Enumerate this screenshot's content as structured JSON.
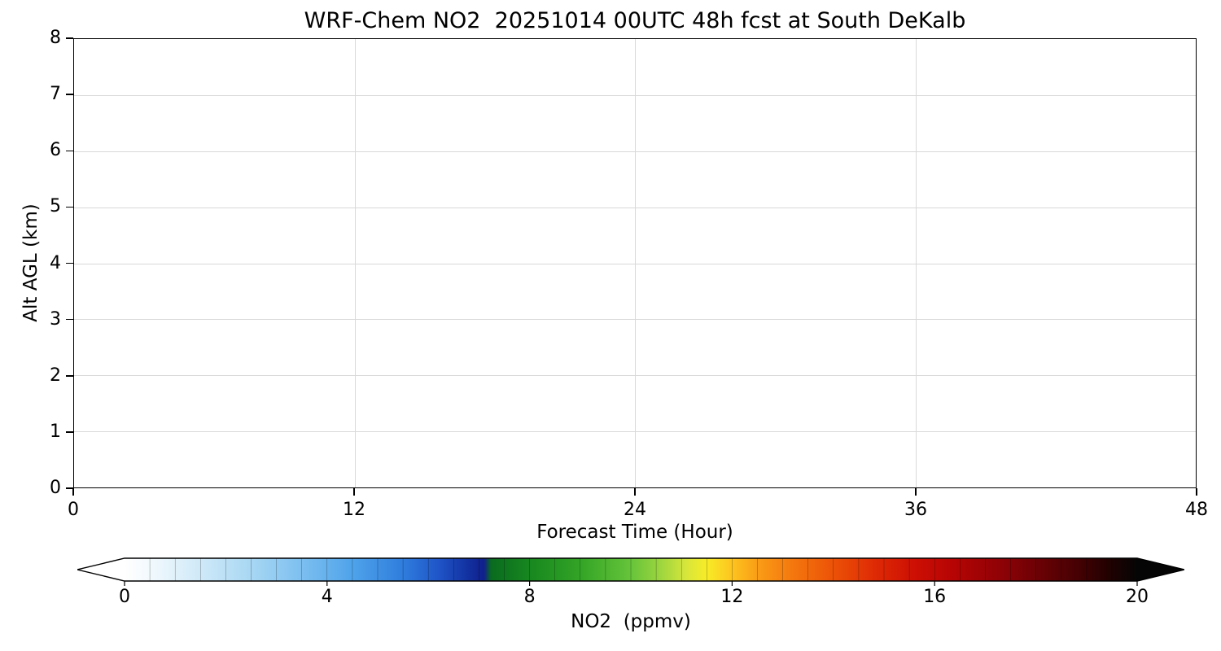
{
  "figure": {
    "background": "#ffffff",
    "text_color": "#000000"
  },
  "chart_data": {
    "type": "heatmap",
    "title": "WRF-Chem NO2  20251014 00UTC 48h fcst at South DeKalb",
    "xlabel": "Forecast Time (Hour)",
    "ylabel": "Alt AGL (km)",
    "xlim": [
      0,
      48
    ],
    "ylim": [
      0,
      8
    ],
    "x_ticks": [
      0,
      12,
      24,
      36,
      48
    ],
    "y_ticks": [
      0,
      1,
      2,
      3,
      4,
      5,
      6,
      7,
      8
    ],
    "grid": true,
    "grid_color": "#d9d9d9",
    "plot_background": "#ffffff",
    "values": [],
    "colorbar": {
      "label": "NO2  (ppmv)",
      "ticks": [
        0,
        4,
        8,
        12,
        16,
        20
      ],
      "range": [
        0,
        20
      ],
      "extend": "both",
      "segments": 40,
      "stops": [
        {
          "pos": 0.0,
          "color": "#ffffff"
        },
        {
          "pos": 0.025,
          "color": "#f2f9fd"
        },
        {
          "pos": 0.075,
          "color": "#cfe9f8"
        },
        {
          "pos": 0.125,
          "color": "#a8d7f3"
        },
        {
          "pos": 0.175,
          "color": "#7cbff0"
        },
        {
          "pos": 0.225,
          "color": "#4fa3ea"
        },
        {
          "pos": 0.275,
          "color": "#2f7ddd"
        },
        {
          "pos": 0.31,
          "color": "#1f55c8"
        },
        {
          "pos": 0.34,
          "color": "#12309f"
        },
        {
          "pos": 0.355,
          "color": "#101f8c"
        },
        {
          "pos": 0.362,
          "color": "#0a6b1f"
        },
        {
          "pos": 0.4,
          "color": "#17871f"
        },
        {
          "pos": 0.45,
          "color": "#33a426"
        },
        {
          "pos": 0.5,
          "color": "#66c43a"
        },
        {
          "pos": 0.53,
          "color": "#9ed63f"
        },
        {
          "pos": 0.555,
          "color": "#d7e63a"
        },
        {
          "pos": 0.575,
          "color": "#f7ec27"
        },
        {
          "pos": 0.6,
          "color": "#fdc41f"
        },
        {
          "pos": 0.625,
          "color": "#fa9d16"
        },
        {
          "pos": 0.66,
          "color": "#f4770e"
        },
        {
          "pos": 0.7,
          "color": "#ec5207"
        },
        {
          "pos": 0.74,
          "color": "#df2b05"
        },
        {
          "pos": 0.78,
          "color": "#cd0f04"
        },
        {
          "pos": 0.82,
          "color": "#b50404"
        },
        {
          "pos": 0.86,
          "color": "#930206"
        },
        {
          "pos": 0.9,
          "color": "#6e0105"
        },
        {
          "pos": 0.94,
          "color": "#470103"
        },
        {
          "pos": 0.97,
          "color": "#240101"
        },
        {
          "pos": 1.0,
          "color": "#050505"
        }
      ]
    }
  }
}
